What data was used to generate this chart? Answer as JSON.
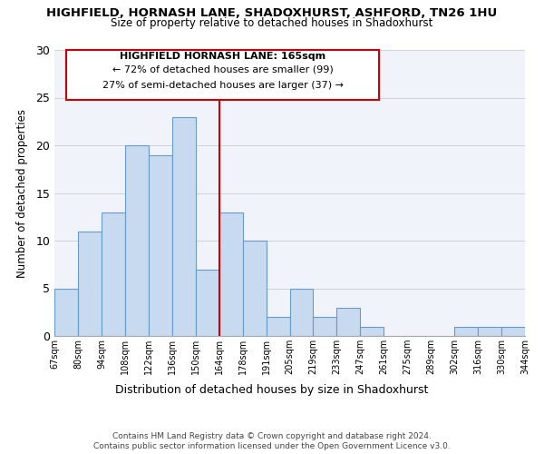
{
  "title": "HIGHFIELD, HORNASH LANE, SHADOXHURST, ASHFORD, TN26 1HU",
  "subtitle": "Size of property relative to detached houses in Shadoxhurst",
  "xlabel": "Distribution of detached houses by size in Shadoxhurst",
  "ylabel": "Number of detached properties",
  "bar_labels": [
    "67sqm",
    "80sqm",
    "94sqm",
    "108sqm",
    "122sqm",
    "136sqm",
    "150sqm",
    "164sqm",
    "178sqm",
    "191sqm",
    "205sqm",
    "219sqm",
    "233sqm",
    "247sqm",
    "261sqm",
    "275sqm",
    "289sqm",
    "302sqm",
    "316sqm",
    "330sqm",
    "344sqm"
  ],
  "bar_values": [
    5,
    11,
    13,
    20,
    19,
    23,
    7,
    13,
    10,
    2,
    5,
    2,
    3,
    1,
    0,
    0,
    0,
    1,
    1,
    1
  ],
  "marker_index": 7,
  "annotation_title": "HIGHFIELD HORNASH LANE: 165sqm",
  "annotation_line1": "← 72% of detached houses are smaller (99)",
  "annotation_line2": "27% of semi-detached houses are larger (37) →",
  "bar_color": "#c8daf0",
  "bar_edge_color": "#6699cc",
  "marker_line_color": "#cc0000",
  "ylim": [
    0,
    30
  ],
  "yticks": [
    0,
    5,
    10,
    15,
    20,
    25,
    30
  ],
  "footer1": "Contains HM Land Registry data © Crown copyright and database right 2024.",
  "footer2": "Contains public sector information licensed under the Open Government Licence v3.0.",
  "bg_color": "#f0f4fa"
}
